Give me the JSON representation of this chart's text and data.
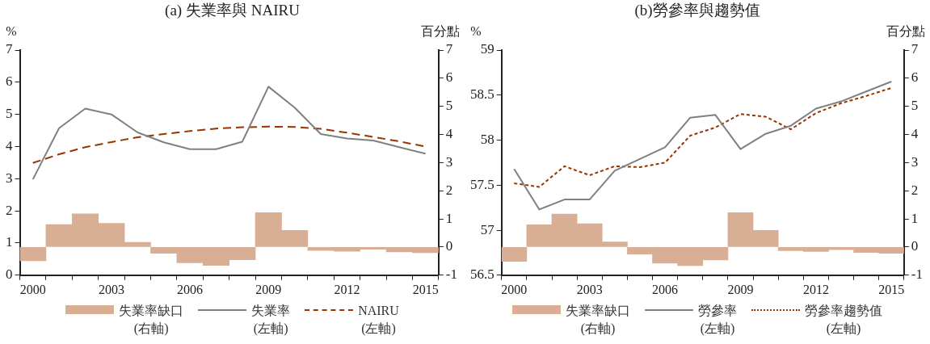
{
  "chart_data": [
    {
      "type": "bar",
      "title": "(a)  失業率與 NAIRU",
      "ylabel": "%",
      "y2label": "百分點",
      "categories": [
        "2000",
        null,
        null,
        "2003",
        null,
        null,
        "2006",
        null,
        null,
        "2009",
        null,
        null,
        "2012",
        null,
        null,
        "2015"
      ],
      "series": [
        {
          "name": "失業率缺口\n(右軸)",
          "axis": "y2",
          "color": "#d8ae94",
          "values": [
            -0.49,
            0.8,
            1.18,
            0.84,
            0.17,
            -0.22,
            -0.56,
            -0.65,
            -0.45,
            1.22,
            0.59,
            -0.12,
            -0.15,
            -0.08,
            -0.17,
            -0.2
          ]
        },
        {
          "name": "失業率\n(左軸)",
          "type": "line",
          "axis": "y",
          "color": "#808080",
          "line_style": "solid",
          "values": [
            2.98,
            4.57,
            5.18,
            5.0,
            4.44,
            4.13,
            3.92,
            3.92,
            4.15,
            5.86,
            5.21,
            4.39,
            4.25,
            4.19,
            3.98,
            3.78
          ]
        },
        {
          "name": "NAIRU\n(左軸)",
          "type": "line",
          "axis": "y",
          "color": "#993300",
          "line_style": "dashed",
          "values": [
            3.49,
            3.76,
            3.98,
            4.14,
            4.29,
            4.39,
            4.48,
            4.56,
            4.6,
            4.62,
            4.61,
            4.55,
            4.43,
            4.3,
            4.16,
            4.0
          ]
        }
      ],
      "ylim": [
        0,
        7
      ],
      "yticks": [
        0,
        1,
        2,
        3,
        4,
        5,
        6,
        7
      ],
      "y2lim": [
        -1,
        7
      ],
      "y2ticks": [
        -1,
        0,
        1,
        2,
        3,
        4,
        5,
        6,
        7
      ],
      "legend": "bottom",
      "marker": "none"
    },
    {
      "type": "bar",
      "title": "(b)勞參率與趨勢值",
      "ylabel": "%",
      "y2label": "百分點",
      "categories": [
        "2000",
        null,
        null,
        "2003",
        null,
        null,
        "2006",
        null,
        null,
        "2009",
        null,
        null,
        "2012",
        null,
        null,
        "2015"
      ],
      "series": [
        {
          "name": "失業率缺口\n(右軸)",
          "axis": "y2",
          "color": "#d8ae94",
          "values": [
            -0.51,
            0.79,
            1.17,
            0.83,
            0.18,
            -0.25,
            -0.57,
            -0.66,
            -0.46,
            1.22,
            0.59,
            -0.13,
            -0.16,
            -0.09,
            -0.19,
            -0.22
          ]
        },
        {
          "name": "勞參率\n(左軸)",
          "type": "line",
          "axis": "y",
          "color": "#808080",
          "line_style": "solid",
          "values": [
            57.68,
            57.23,
            57.34,
            57.34,
            57.66,
            57.79,
            57.92,
            58.25,
            58.28,
            57.9,
            58.07,
            58.16,
            58.35,
            58.43,
            58.54,
            58.65
          ]
        },
        {
          "name": "勞參率趨勢值\n(左軸)",
          "type": "line",
          "axis": "y",
          "color": "#993300",
          "line_style": "dotted",
          "values": [
            57.52,
            57.48,
            57.71,
            57.61,
            57.71,
            57.7,
            57.75,
            58.05,
            58.14,
            58.29,
            58.26,
            58.12,
            58.3,
            58.41,
            58.49,
            58.58
          ]
        }
      ],
      "ylim": [
        56.5,
        59
      ],
      "yticks": [
        56.5,
        57,
        57.5,
        58,
        58.5,
        59
      ],
      "y2lim": [
        -1,
        7
      ],
      "y2ticks": [
        -1,
        0,
        1,
        2,
        3,
        4,
        5,
        6,
        7
      ],
      "legend": "bottom",
      "marker": "none"
    }
  ]
}
